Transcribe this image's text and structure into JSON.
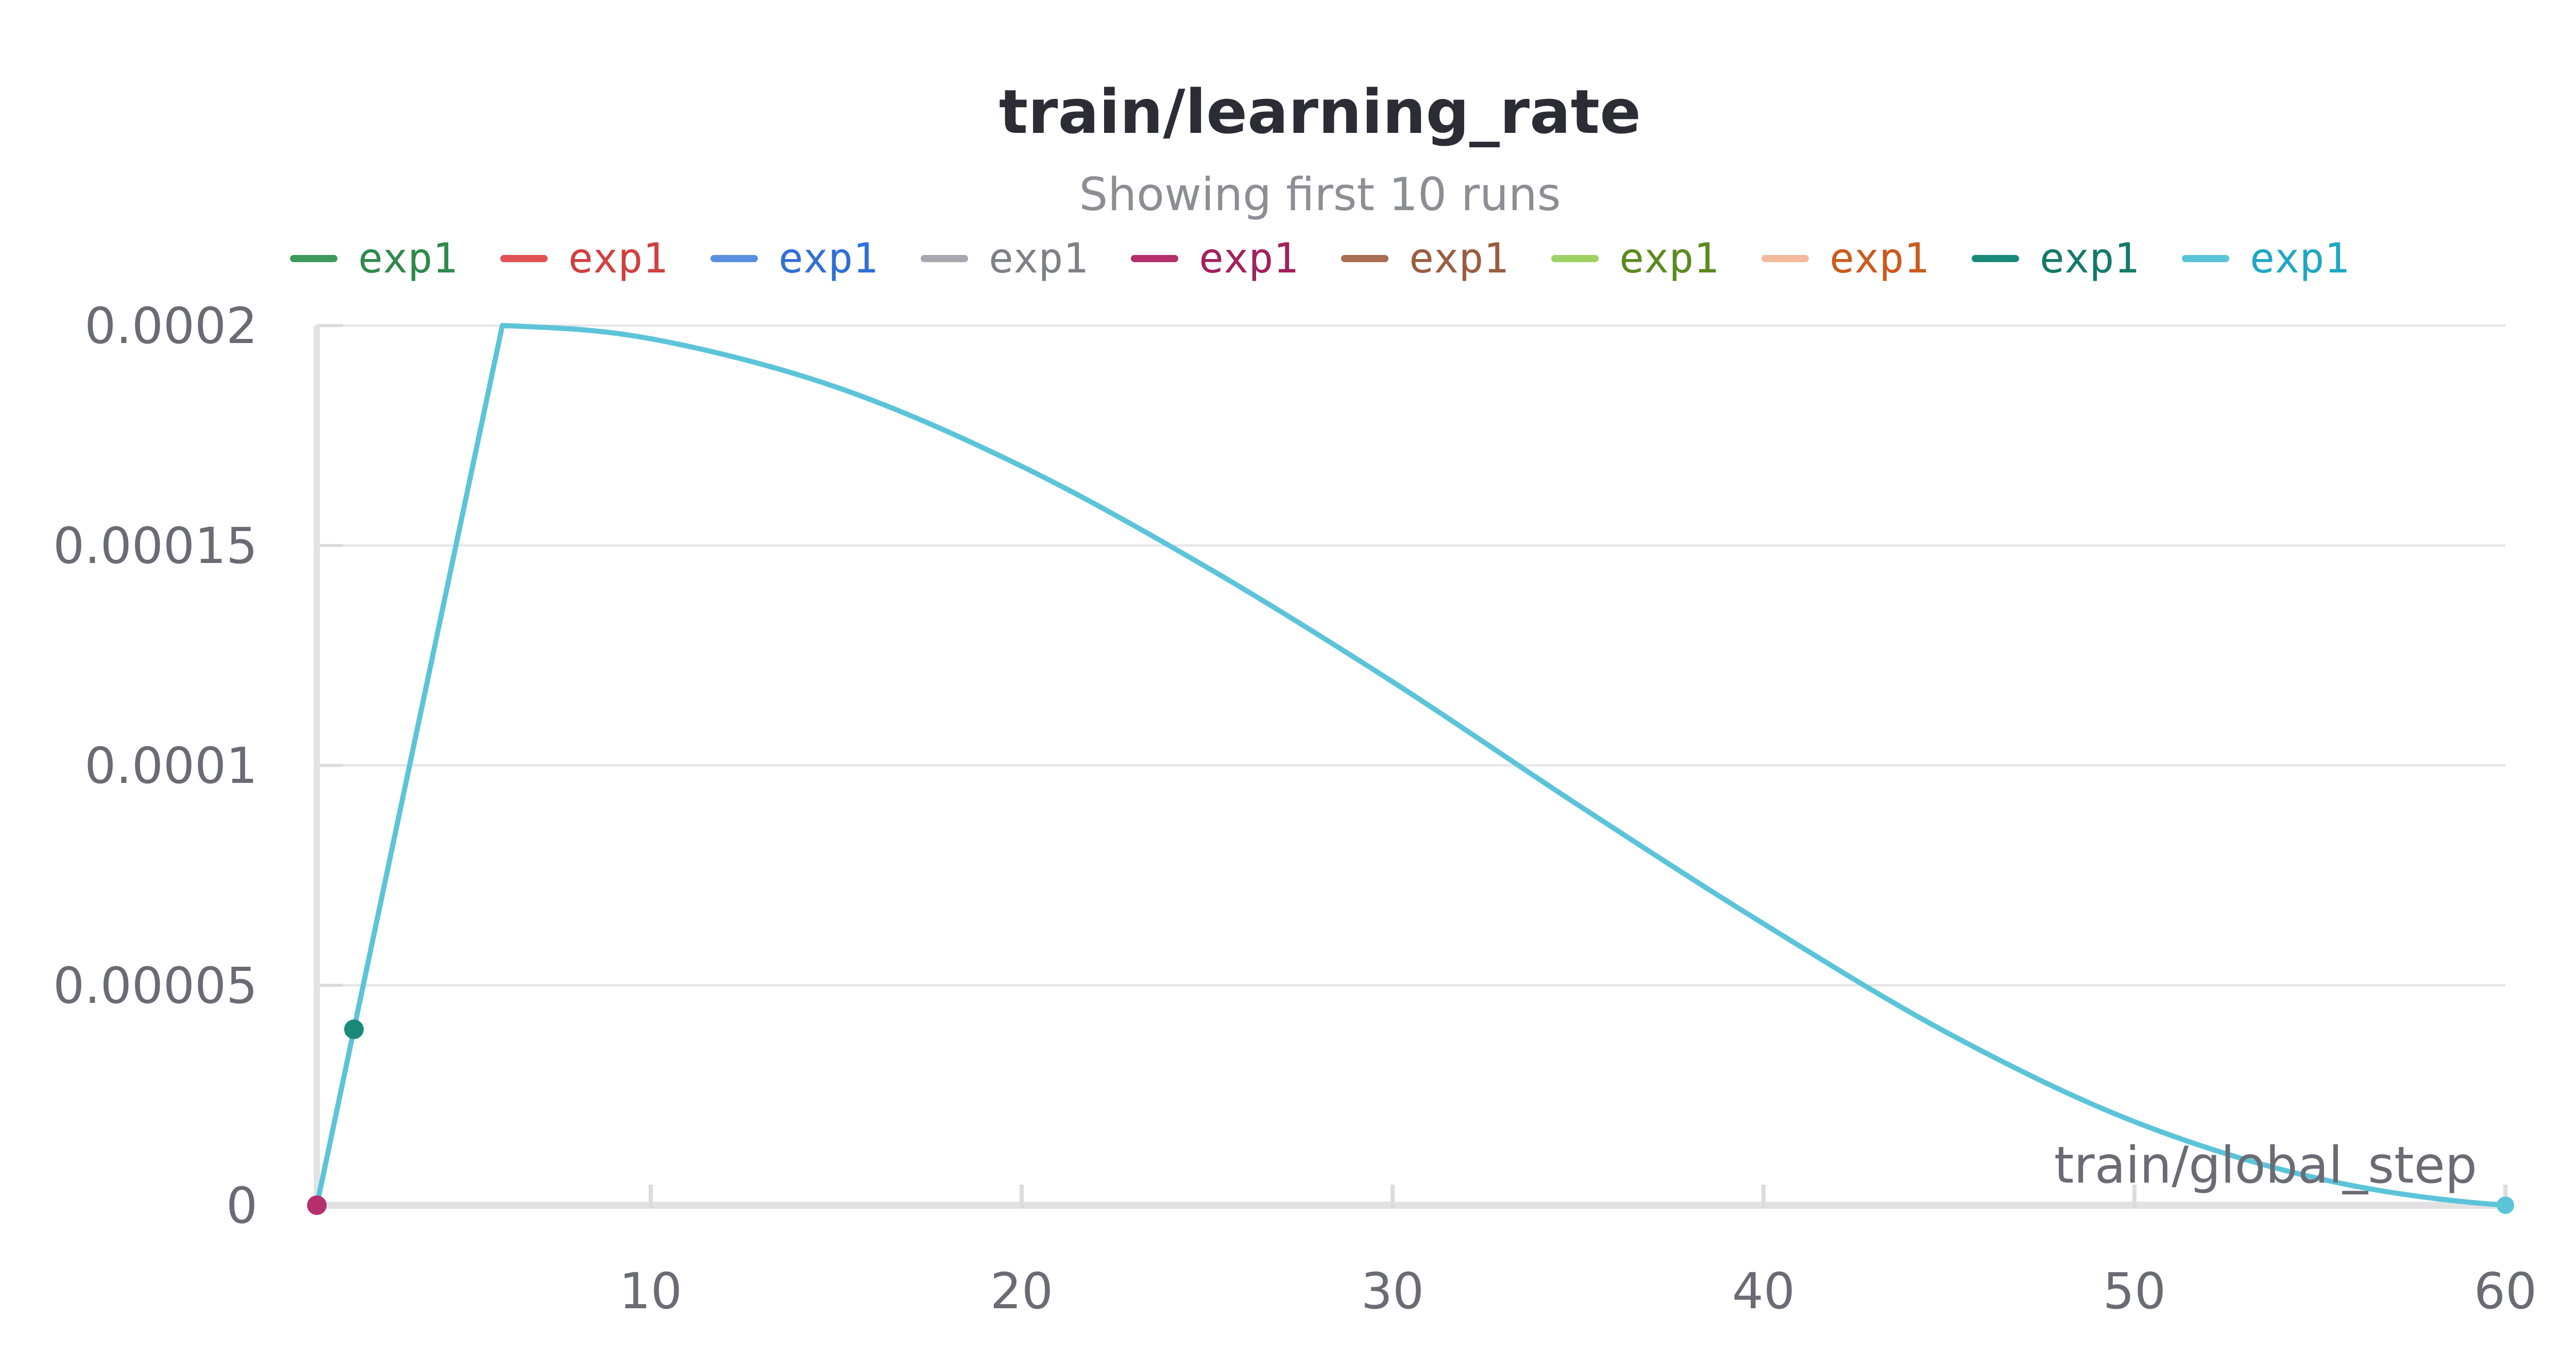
{
  "chart_data": {
    "type": "line",
    "title": "train/learning_rate",
    "subtitle": "Showing first 10 runs",
    "xlabel": "train/global_step",
    "ylabel": "",
    "xlim": [
      1,
      60
    ],
    "ylim": [
      0,
      0.0002
    ],
    "grid": true,
    "legend_position": "top",
    "x_ticks": [
      {
        "value": 10,
        "label": "10"
      },
      {
        "value": 20,
        "label": "20"
      },
      {
        "value": 30,
        "label": "30"
      },
      {
        "value": 40,
        "label": "40"
      },
      {
        "value": 50,
        "label": "50"
      },
      {
        "value": 60,
        "label": "60"
      }
    ],
    "y_ticks": [
      {
        "value": 0,
        "label": "0"
      },
      {
        "value": 5e-05,
        "label": "0.00005"
      },
      {
        "value": 0.0001,
        "label": "0.0001"
      },
      {
        "value": 0.00015,
        "label": "0.00015"
      },
      {
        "value": 0.0002,
        "label": "0.0002"
      }
    ],
    "legend": [
      {
        "label": "exp1",
        "line_color": "#3d9a5c",
        "text_color": "#2f8a4c"
      },
      {
        "label": "exp1",
        "line_color": "#e05252",
        "text_color": "#d13f3f"
      },
      {
        "label": "exp1",
        "line_color": "#5a8fe0",
        "text_color": "#2f6fd4"
      },
      {
        "label": "exp1",
        "line_color": "#a6a8ad",
        "text_color": "#7e8086"
      },
      {
        "label": "exp1",
        "line_color": "#b52f6e",
        "text_color": "#a2205c"
      },
      {
        "label": "exp1",
        "line_color": "#a86e52",
        "text_color": "#9a5d40"
      },
      {
        "label": "exp1",
        "line_color": "#9ed164",
        "text_color": "#5b8a1f"
      },
      {
        "label": "exp1",
        "line_color": "#f2b99c",
        "text_color": "#cc5a1d"
      },
      {
        "label": "exp1",
        "line_color": "#1a8a78",
        "text_color": "#137a69"
      },
      {
        "label": "exp1",
        "line_color": "#5cc4d9",
        "text_color": "#1fa7c4"
      }
    ],
    "series": [
      {
        "color": "#5cc4d9",
        "x": [
          1,
          6,
          10,
          15,
          20,
          25,
          30,
          35,
          40,
          45,
          50,
          55,
          60
        ],
        "y": [
          0,
          0.0002,
          0.000197,
          0.000186,
          0.000168,
          0.000145,
          0.000119,
          9.1e-05,
          6.4e-05,
          3.9e-05,
          1.9e-05,
          6e-06,
          0
        ]
      },
      {
        "color": "#1a8a78",
        "x": [
          2
        ],
        "y": [
          4e-05
        ]
      },
      {
        "color": "#b52f6e",
        "x": [
          1
        ],
        "y": [
          0
        ]
      }
    ]
  }
}
